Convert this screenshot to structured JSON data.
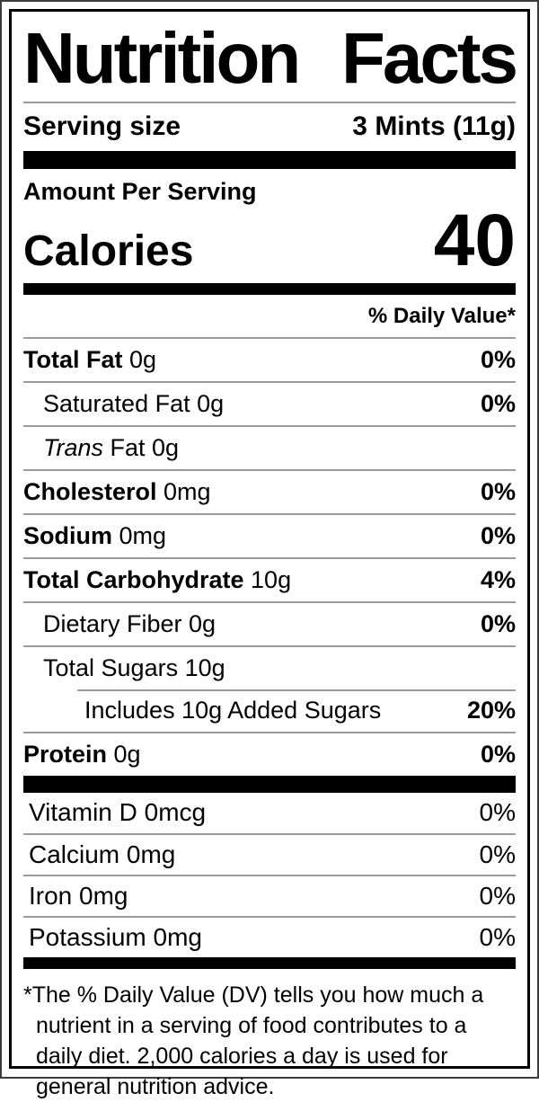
{
  "label": {
    "title": "Nutrition Facts",
    "serving": {
      "label": "Serving size",
      "value": "3 Mints (11g)"
    },
    "amount_per_serving": "Amount Per Serving",
    "calories": {
      "label": "Calories",
      "value": "40"
    },
    "daily_value_header": "% Daily Value*",
    "rows": [
      {
        "bold": "Total Fat",
        "rest": " 0g",
        "dv": "0%"
      },
      {
        "rest": "Saturated Fat 0g",
        "dv": "0%"
      },
      {
        "italic": "Trans",
        "rest": " Fat 0g",
        "dv": ""
      },
      {
        "bold": "Cholesterol",
        "rest": " 0mg",
        "dv": "0%"
      },
      {
        "bold": "Sodium",
        "rest": " 0mg",
        "dv": "0%"
      },
      {
        "bold": "Total Carbohydrate",
        "rest": " 10g",
        "dv": "4%"
      },
      {
        "rest": "Dietary Fiber 0g",
        "dv": "0%"
      },
      {
        "rest": "Total Sugars 10g",
        "dv": ""
      },
      {
        "rest": "Includes 10g Added Sugars",
        "dv": "20%"
      },
      {
        "bold": "Protein",
        "rest": " 0g",
        "dv": "0%"
      }
    ],
    "vitamins": [
      {
        "name": "Vitamin D 0mcg",
        "dv": "0%"
      },
      {
        "name": "Calcium 0mg",
        "dv": "0%"
      },
      {
        "name": "Iron 0mg",
        "dv": "0%"
      },
      {
        "name": "Potassium 0mg",
        "dv": "0%"
      }
    ],
    "footnote_marker": "*",
    "footnote_text": "The % Daily Value (DV) tells you how much a nutrient in a serving of food contributes to a daily diet. 2,000 calories a day is used for general nutrition advice."
  }
}
